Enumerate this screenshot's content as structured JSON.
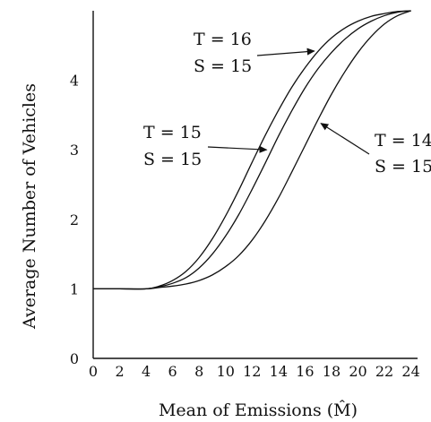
{
  "chart_data": {
    "type": "line",
    "title": "",
    "xlabel": "Mean of Emissions (M̂)",
    "ylabel": "Average Number of Vehicles",
    "xlim": [
      0,
      24.5
    ],
    "ylim": [
      0,
      5
    ],
    "xticks": [
      0,
      2,
      4,
      6,
      8,
      10,
      12,
      14,
      16,
      18,
      20,
      22,
      24
    ],
    "yticks": [
      0,
      1,
      2,
      3,
      4
    ],
    "grid": false,
    "series": [
      {
        "name": "T = 16, S = 15",
        "x": [
          0,
          2,
          4,
          5,
          6,
          7,
          8,
          9,
          10,
          11,
          12,
          13,
          14,
          15,
          16,
          17,
          18,
          19,
          20,
          21,
          22,
          23,
          24
        ],
        "y": [
          1,
          1,
          1,
          1.04,
          1.12,
          1.25,
          1.45,
          1.72,
          2.05,
          2.42,
          2.82,
          3.21,
          3.57,
          3.9,
          4.18,
          4.42,
          4.61,
          4.75,
          4.85,
          4.92,
          4.96,
          4.99,
          5.0
        ]
      },
      {
        "name": "T = 15, S = 15",
        "x": [
          0,
          2,
          4,
          5,
          6,
          7,
          8,
          9,
          10,
          11,
          12,
          13,
          14,
          15,
          16,
          17,
          18,
          19,
          20,
          21,
          22,
          23,
          24
        ],
        "y": [
          1,
          1,
          1,
          1.03,
          1.08,
          1.16,
          1.3,
          1.5,
          1.76,
          2.07,
          2.43,
          2.81,
          3.2,
          3.56,
          3.89,
          4.17,
          4.4,
          4.59,
          4.74,
          4.85,
          4.93,
          4.98,
          5.0
        ]
      },
      {
        "name": "T = 14, S = 15",
        "x": [
          0,
          2,
          4,
          5,
          6,
          7,
          8,
          9,
          10,
          11,
          12,
          13,
          14,
          15,
          16,
          17,
          18,
          19,
          20,
          21,
          22,
          23,
          24
        ],
        "y": [
          1,
          1,
          1,
          1.02,
          1.04,
          1.07,
          1.12,
          1.2,
          1.32,
          1.48,
          1.7,
          1.98,
          2.31,
          2.68,
          3.06,
          3.44,
          3.8,
          4.12,
          4.4,
          4.63,
          4.81,
          4.93,
          5.0
        ]
      }
    ],
    "annotations": [
      {
        "series": 0,
        "t_label": "T = 16",
        "s_label": "S = 15",
        "arrow_to": [
          16.7,
          4.42
        ]
      },
      {
        "series": 1,
        "t_label": "T = 15",
        "s_label": "S = 15",
        "arrow_to": [
          13.1,
          3.0
        ]
      },
      {
        "series": 2,
        "t_label": "T = 14",
        "s_label": "S = 15",
        "arrow_to": [
          17.2,
          3.38
        ]
      }
    ]
  }
}
